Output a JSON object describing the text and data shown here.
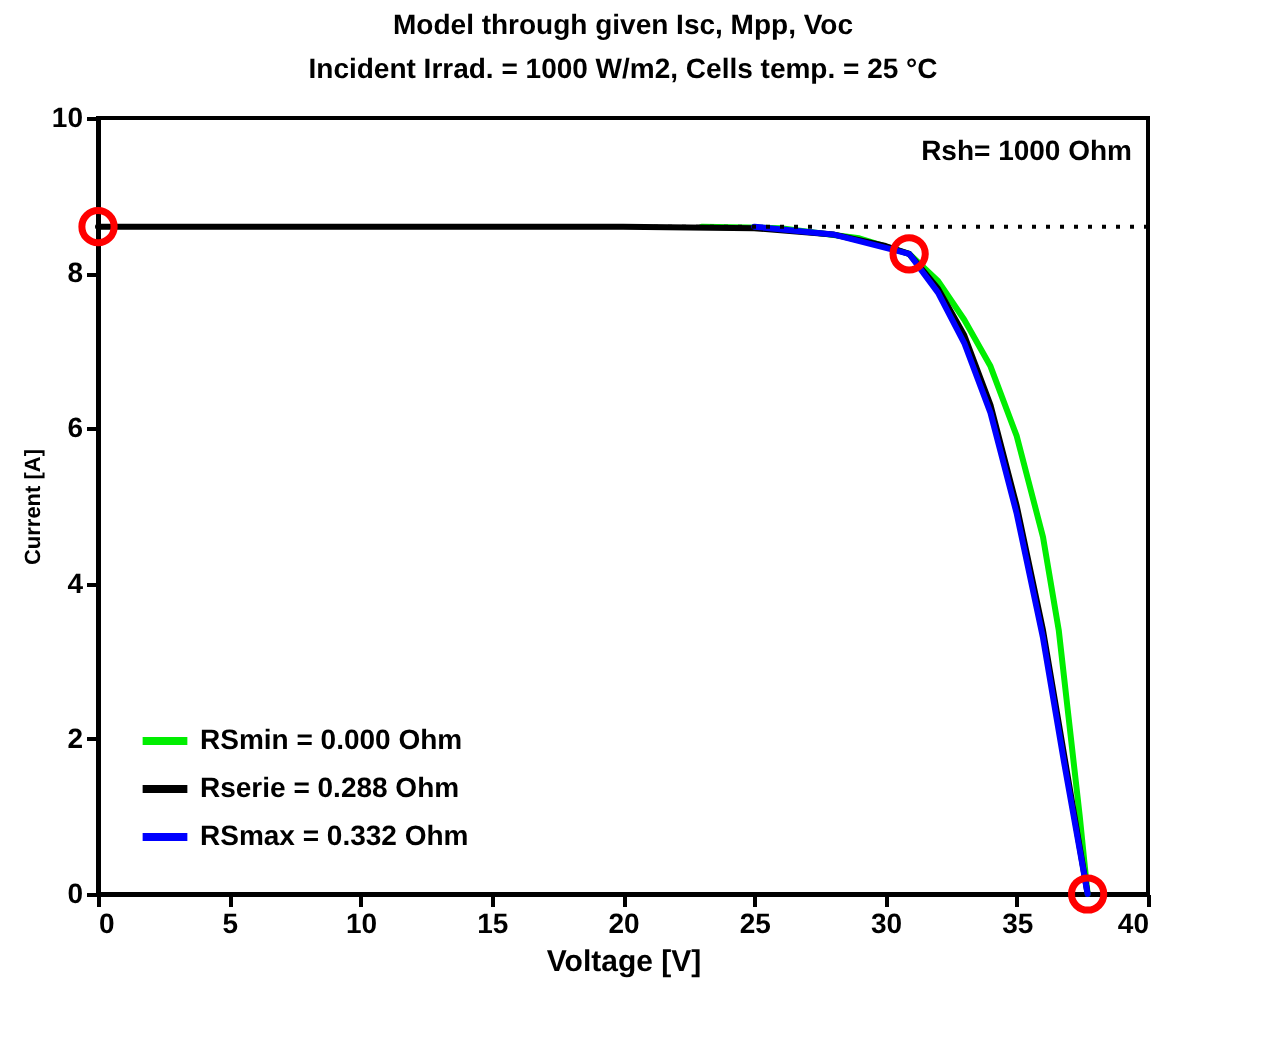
{
  "chart_data": {
    "type": "line",
    "title": "Model through given Isc, Mpp, Voc",
    "subtitle": "Incident Irrad. = 1000 W/m2,  Cells temp. = 25 °C",
    "xlabel": "Voltage [V]",
    "ylabel": "Current [A]",
    "xlim": [
      0,
      40
    ],
    "xticks": [
      0,
      5,
      10,
      15,
      20,
      25,
      30,
      35,
      40
    ],
    "ylim": [
      0,
      10
    ],
    "yticks": [
      0,
      2,
      4,
      6,
      8,
      10
    ],
    "grid": false,
    "legend": "bottom left",
    "line_style": "solid",
    "series": [
      {
        "name": "RSmin = 0.000 Ohm",
        "color": "#00ee00",
        "x": [
          23,
          26,
          29,
          30.9,
          32,
          33,
          34,
          35,
          36,
          36.6,
          37,
          37.4,
          37.7
        ],
        "values": [
          8.6,
          8.58,
          8.45,
          8.25,
          7.9,
          7.4,
          6.8,
          5.9,
          4.6,
          3.4,
          2.2,
          1,
          0
        ]
      },
      {
        "name": "Rserie = 0.288 Ohm",
        "color": "#000000",
        "x": [
          0,
          20,
          25,
          28,
          30,
          30.9,
          32,
          33,
          34,
          35,
          36,
          36.8,
          37.3,
          37.7
        ],
        "values": [
          8.6,
          8.6,
          8.58,
          8.5,
          8.35,
          8.25,
          7.8,
          7.2,
          6.3,
          5,
          3.4,
          1.8,
          0.8,
          0
        ]
      },
      {
        "name": "RSmax = 0.332 Ohm",
        "color": "#0000ff",
        "x": [
          25,
          28,
          30.9,
          32,
          33,
          34,
          35,
          36,
          36.8,
          37.7
        ],
        "values": [
          8.6,
          8.5,
          8.25,
          7.75,
          7.1,
          6.2,
          4.9,
          3.3,
          1.7,
          0
        ]
      },
      {
        "type": "scatter",
        "color": "#ff0000",
        "marker": "circle",
        "x": [
          0,
          30.9,
          37.7
        ],
        "values": [
          8.6,
          8.25,
          0
        ]
      }
    ],
    "ref_lines": [
      {
        "axis": "y",
        "value": 8.6,
        "line_style": "dotted",
        "color": "#000000"
      }
    ],
    "annotations": [
      "Rsh= 1000 Ohm"
    ]
  }
}
